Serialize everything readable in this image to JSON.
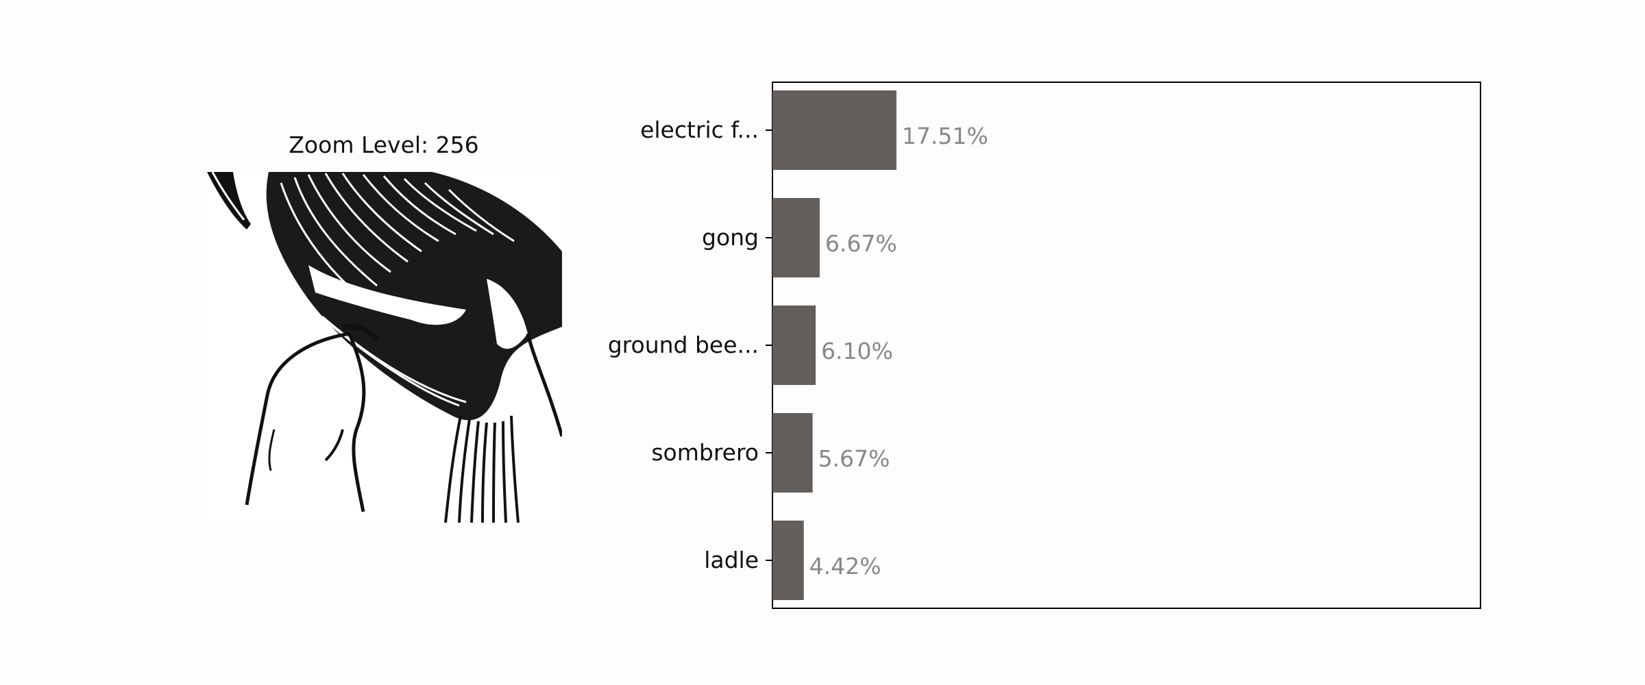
{
  "image_panel": {
    "title": "Zoom Level: 256"
  },
  "chart_data": {
    "type": "bar",
    "orientation": "horizontal",
    "categories": [
      "electric f...",
      "gong",
      "ground bee...",
      "sombrero",
      "ladle"
    ],
    "values": [
      17.51,
      6.67,
      6.1,
      5.67,
      4.42
    ],
    "value_labels": [
      "17.51%",
      "6.67%",
      "6.10%",
      "5.67%",
      "4.42%"
    ],
    "xlim": [
      0,
      100
    ],
    "grid": false,
    "bar_color": "#625e5c",
    "value_label_color": "#888888"
  }
}
